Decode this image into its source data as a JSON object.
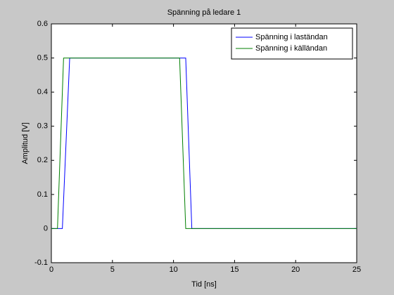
{
  "chart_data": {
    "type": "line",
    "title": "Spänning på ledare 1",
    "xlabel": "Tid [ns]",
    "ylabel": "Amplitud [V]",
    "series": [
      {
        "name": "Spänning i laständan",
        "color": "#0000ff",
        "x": [
          0,
          0.9,
          1.5,
          11,
          11.5,
          25
        ],
        "values": [
          0,
          0,
          0.5,
          0.5,
          0,
          0
        ]
      },
      {
        "name": "Spänning i källändan",
        "color": "#007f00",
        "x": [
          0,
          0.5,
          1,
          10.5,
          11,
          25
        ],
        "values": [
          0,
          0,
          0.5,
          0.5,
          0,
          0
        ]
      }
    ],
    "xlim": [
      0,
      25
    ],
    "xticks": [
      0,
      5,
      10,
      15,
      20,
      25
    ],
    "ylim": [
      -0.1,
      0.6
    ],
    "yticks": [
      -0.1,
      0,
      0.1,
      0.2,
      0.3,
      0.4,
      0.5,
      0.6
    ],
    "grid": false,
    "legend": "upper-right"
  }
}
